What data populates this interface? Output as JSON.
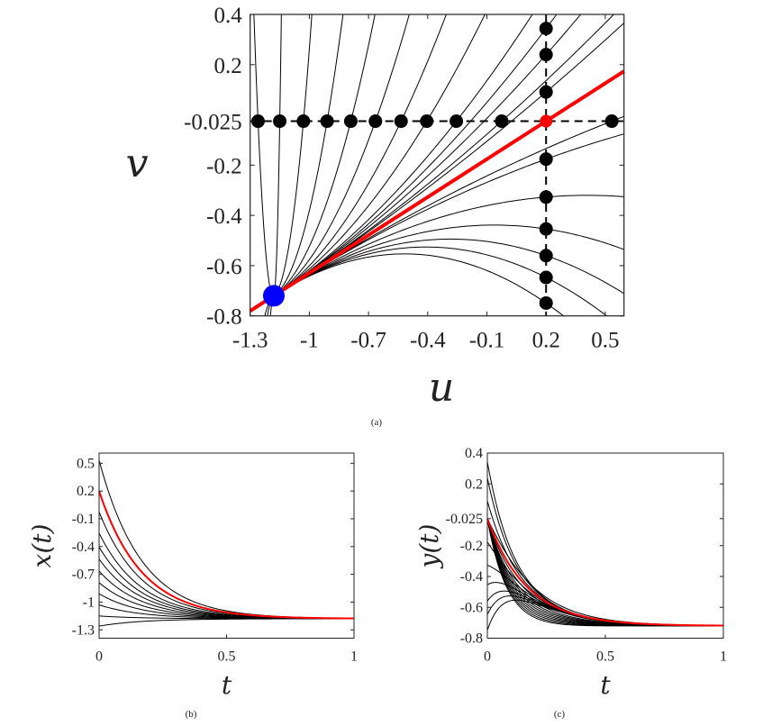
{
  "chart_data": [
    {
      "id": "a",
      "type": "line",
      "caption": "(a)",
      "xlabel": "u",
      "ylabel": "v",
      "xlim": [
        -1.3,
        0.595
      ],
      "ylim": [
        -0.8,
        0.4
      ],
      "xticks": [
        -1.3,
        -1,
        -0.7,
        -0.4,
        -0.1,
        0.2,
        0.5
      ],
      "xtick_labels": [
        "-1.3",
        "-1",
        "-0.7",
        "-0.4",
        "-0.1",
        "0.2",
        "0.5"
      ],
      "yticks": [
        -0.8,
        -0.6,
        -0.4,
        -0.2,
        -0.025,
        0.2,
        0.4
      ],
      "ytick_labels": [
        "-0.8",
        "-0.6",
        "-0.4",
        "-0.2",
        "-0.025",
        "0.2",
        "0.4"
      ],
      "equilibrium": {
        "u": -1.18,
        "v": -0.72,
        "color": "#0000ff"
      },
      "highlight_point": {
        "u": 0.2,
        "v": -0.025,
        "color": "#ff0000"
      },
      "dashed_lines": {
        "horizontal_v": -0.025,
        "vertical_u": 0.2
      },
      "initial_points_horizontal": [
        {
          "u": -1.26,
          "v": -0.025
        },
        {
          "u": -1.15,
          "v": -0.025
        },
        {
          "u": -1.03,
          "v": -0.025
        },
        {
          "u": -0.91,
          "v": -0.025
        },
        {
          "u": -0.79,
          "v": -0.025
        },
        {
          "u": -0.665,
          "v": -0.025
        },
        {
          "u": -0.535,
          "v": -0.025
        },
        {
          "u": -0.405,
          "v": -0.025
        },
        {
          "u": -0.255,
          "v": -0.025
        },
        {
          "u": -0.025,
          "v": -0.025
        },
        {
          "u": 0.533,
          "v": -0.025
        }
      ],
      "initial_points_vertical": [
        {
          "u": 0.2,
          "v": 0.344
        },
        {
          "u": 0.2,
          "v": 0.24
        },
        {
          "u": 0.2,
          "v": 0.091
        },
        {
          "u": 0.2,
          "v": -0.176
        },
        {
          "u": 0.2,
          "v": -0.327
        },
        {
          "u": 0.2,
          "v": -0.454
        },
        {
          "u": 0.2,
          "v": -0.56
        },
        {
          "u": 0.2,
          "v": -0.647
        },
        {
          "u": 0.2,
          "v": -0.749
        }
      ],
      "trajectory_color": "#000000",
      "highlight_color": "#ff0000"
    },
    {
      "id": "b",
      "type": "line",
      "caption": "(b)",
      "xlabel": "t",
      "ylabel": "x(t)",
      "xlim": [
        0,
        1
      ],
      "ylim": [
        -1.39,
        0.61
      ],
      "xticks": [
        0,
        0.5,
        1
      ],
      "xtick_labels": [
        "0",
        "0.5",
        "1"
      ],
      "yticks": [
        0.5,
        0.2,
        -0.1,
        -0.4,
        -0.7,
        -1,
        -1.3
      ],
      "ytick_labels": [
        "0.5",
        "0.2",
        "-0.1",
        "-0.4",
        "-0.7",
        "-1",
        "-1.3"
      ],
      "steady_state": -1.18
    },
    {
      "id": "c",
      "type": "line",
      "caption": "(c)",
      "xlabel": "t",
      "ylabel": "y(t)",
      "xlim": [
        0,
        1
      ],
      "ylim": [
        -0.8,
        0.4
      ],
      "xticks": [
        0,
        0.5,
        1
      ],
      "xtick_labels": [
        "0",
        "0.5",
        "1"
      ],
      "yticks": [
        0.4,
        0.2,
        -0.025,
        -0.2,
        -0.4,
        -0.6,
        -0.8
      ],
      "ytick_labels": [
        "0.4",
        "0.2",
        "-0.025",
        "-0.2",
        "-0.4",
        "-0.6",
        "-0.8"
      ],
      "steady_state": -0.72
    }
  ]
}
